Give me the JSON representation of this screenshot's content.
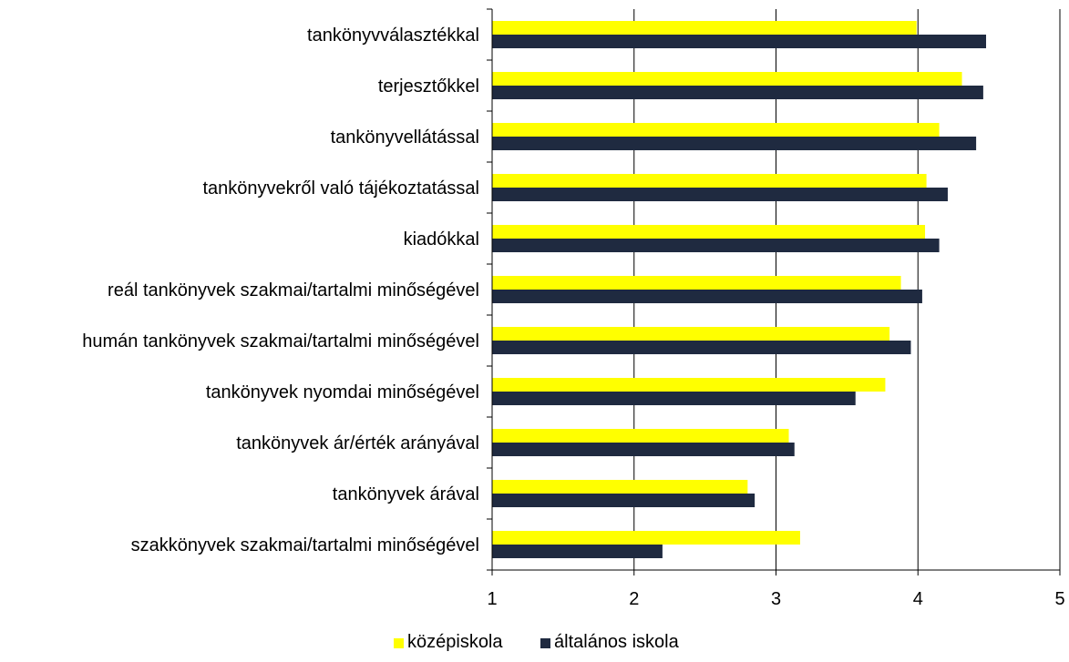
{
  "chart_data": {
    "type": "bar",
    "orientation": "horizontal",
    "categories": [
      "tankönyvválasztékkal",
      "terjesztőkkel",
      "tankönyvellátással",
      "tankönyvekről való tájékoztatással",
      "kiadókkal",
      "reál tankönyvek szakmai/tartalmi minőségével",
      "humán tankönyvek szakmai/tartalmi minőségével",
      "tankönyvek nyomdai minőségével",
      "tankönyvek ár/érték arányával",
      "tankönyvek árával",
      "szakkönyvek szakmai/tartalmi minőségével"
    ],
    "series": [
      {
        "name": "középiskola",
        "color": "#ffff00",
        "values": [
          3.99,
          4.31,
          4.15,
          4.06,
          4.05,
          3.88,
          3.8,
          3.77,
          3.09,
          2.8,
          3.17
        ]
      },
      {
        "name": "általános iskola",
        "color": "#1f2a40",
        "values": [
          4.48,
          4.46,
          4.41,
          4.21,
          4.15,
          4.03,
          3.95,
          3.56,
          3.13,
          2.85,
          2.2
        ]
      }
    ],
    "xlim": [
      1,
      5
    ],
    "xticks": [
      "1",
      "2",
      "3",
      "4",
      "5"
    ],
    "grid": "vertical major gridlines",
    "legend_position": "bottom"
  }
}
